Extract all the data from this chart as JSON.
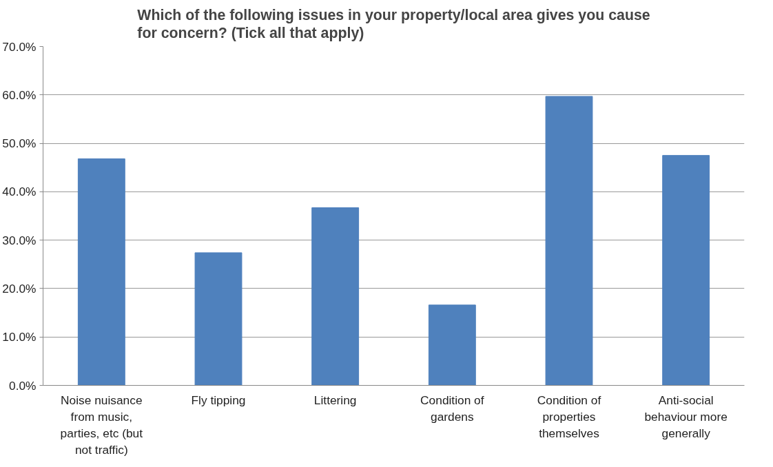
{
  "chart_data": {
    "type": "bar",
    "title": "Which of the following issues in your property/local area gives you cause for concern? (Tick all that apply)",
    "categories": [
      "Noise nuisance from music, parties, etc (but not traffic)",
      "Fly tipping",
      "Littering",
      "Condition of gardens",
      "Condition of properties themselves",
      "Anti-social behaviour more generally"
    ],
    "values": [
      46.8,
      27.4,
      36.7,
      16.6,
      59.7,
      47.5
    ],
    "color": "#4f81bd",
    "ylim": [
      0,
      70
    ],
    "yticks": [
      {
        "value": 0,
        "label": "0.0%"
      },
      {
        "value": 10,
        "label": "10.0%"
      },
      {
        "value": 20,
        "label": "20.0%"
      },
      {
        "value": 30,
        "label": "30.0%"
      },
      {
        "value": 40,
        "label": "40.0%"
      },
      {
        "value": 50,
        "label": "50.0%"
      },
      {
        "value": 60,
        "label": "60.0%"
      },
      {
        "value": 70,
        "label": "70.0%"
      }
    ],
    "grid": "y"
  }
}
